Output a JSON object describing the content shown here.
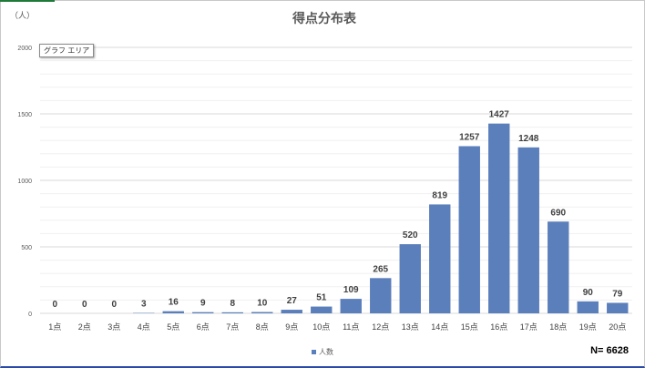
{
  "window": {
    "name": "得点分布表 chart"
  },
  "tooltip": {
    "text": "グラフ エリア"
  },
  "total": {
    "text": "N= 6628"
  },
  "chart_data": {
    "type": "bar",
    "title": "得点分布表",
    "ylabel": "（人）",
    "xlabel": "",
    "ylim": [
      0,
      2000
    ],
    "yticks": [
      0,
      500,
      1000,
      1500,
      2000
    ],
    "grid": true,
    "legend_position": "bottom",
    "categories": [
      "1点",
      "2点",
      "3点",
      "4点",
      "5点",
      "6点",
      "7点",
      "8点",
      "9点",
      "10点",
      "11点",
      "12点",
      "13点",
      "14点",
      "15点",
      "16点",
      "17点",
      "18点",
      "19点",
      "20点"
    ],
    "series": [
      {
        "name": "人数",
        "color": "#5b7fbb",
        "values": [
          0,
          0,
          0,
          3,
          16,
          9,
          8,
          10,
          27,
          51,
          109,
          265,
          520,
          819,
          1257,
          1427,
          1248,
          690,
          90,
          79
        ]
      }
    ]
  }
}
